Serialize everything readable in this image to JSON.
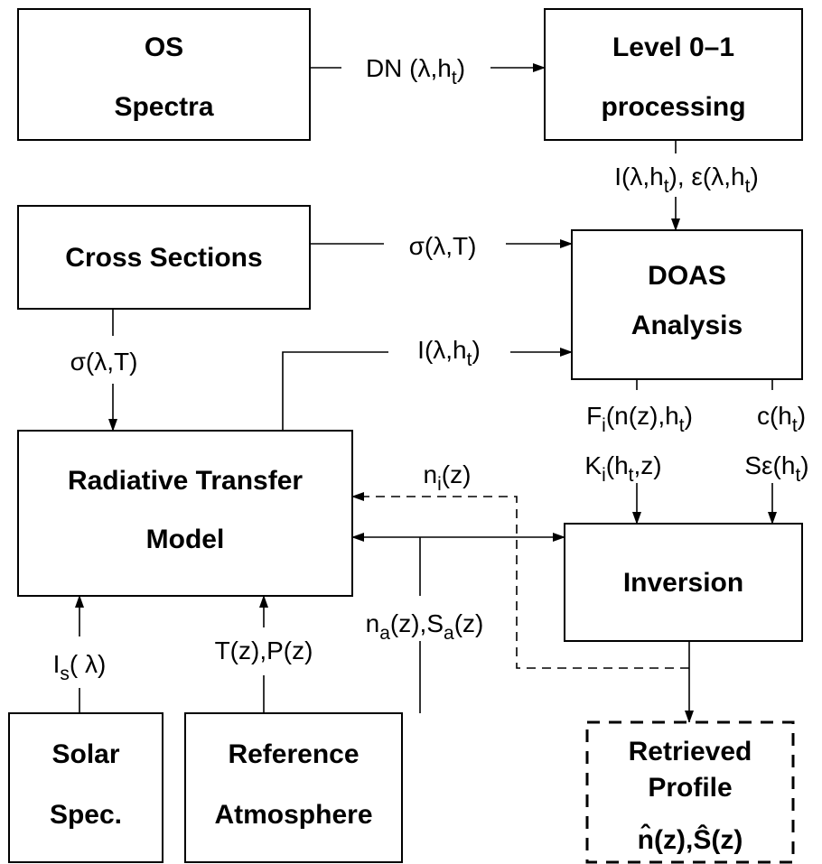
{
  "boxes": [
    {
      "lines": [
        "OS",
        "Spectra"
      ]
    },
    {
      "lines": [
        "Level 0–1",
        "processing"
      ]
    },
    {
      "lines": [
        "Cross Sections"
      ]
    },
    {
      "lines": [
        "DOAS",
        "Analysis"
      ]
    },
    {
      "lines": [
        "Radiative Transfer",
        "Model"
      ]
    },
    {
      "lines": [
        "Inversion"
      ]
    },
    {
      "lines": [
        "Solar",
        "Spec."
      ]
    },
    {
      "lines": [
        "Reference",
        "Atmosphere"
      ]
    },
    {
      "lines": [
        "Retrieved",
        "Profile",
        "n̂(z),Ŝ(z)"
      ],
      "dashed": true
    }
  ],
  "labels": [
    {
      "parts": [
        {
          "t": "DN (λ,h"
        },
        {
          "t": "t",
          "sub": true
        },
        {
          "t": ")"
        }
      ]
    },
    {
      "parts": [
        {
          "t": "I(λ,h"
        },
        {
          "t": "t",
          "sub": true
        },
        {
          "t": "), ε(λ,h"
        },
        {
          "t": "t",
          "sub": true
        },
        {
          "t": ")"
        }
      ]
    },
    {
      "parts": [
        {
          "t": "σ(λ,T)"
        }
      ]
    },
    {
      "parts": [
        {
          "t": "σ(λ,T)"
        }
      ]
    },
    {
      "parts": [
        {
          "t": "I(λ,h"
        },
        {
          "t": "t",
          "sub": true
        },
        {
          "t": ")"
        }
      ]
    },
    {
      "parts": [
        {
          "t": "F"
        },
        {
          "t": "i",
          "sub": true
        },
        {
          "t": "(n(z),h"
        },
        {
          "t": "t",
          "sub": true
        },
        {
          "t": ")"
        }
      ]
    },
    {
      "parts": [
        {
          "t": "c(h"
        },
        {
          "t": "t",
          "sub": true
        },
        {
          "t": ")"
        }
      ]
    },
    {
      "parts": [
        {
          "t": "K"
        },
        {
          "t": "i",
          "sub": true
        },
        {
          "t": "(h"
        },
        {
          "t": "t",
          "sub": true
        },
        {
          "t": ",z)"
        }
      ]
    },
    {
      "parts": [
        {
          "t": "Sε(h"
        },
        {
          "t": "t",
          "sub": true
        },
        {
          "t": ")"
        }
      ]
    },
    {
      "parts": [
        {
          "t": "n"
        },
        {
          "t": "i",
          "sub": true
        },
        {
          "t": "(z)"
        }
      ]
    },
    {
      "parts": [
        {
          "t": "n"
        },
        {
          "t": "a",
          "sub": true
        },
        {
          "t": "(z),S"
        },
        {
          "t": "a",
          "sub": true
        },
        {
          "t": "(z)"
        }
      ]
    },
    {
      "parts": [
        {
          "t": "I"
        },
        {
          "t": "s",
          "sub": true
        },
        {
          "t": "( λ)"
        }
      ]
    },
    {
      "parts": [
        {
          "t": "T(z),P(z)"
        }
      ]
    }
  ]
}
